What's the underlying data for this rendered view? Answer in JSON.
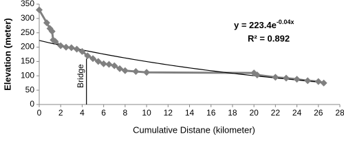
{
  "chart_data": {
    "type": "line",
    "xlabel": "Cumulative Distane (kilometer)",
    "ylabel": "Elevation (meter)",
    "x": [
      0,
      0.7,
      1,
      1.2,
      1.3,
      1.5,
      2,
      2.5,
      3,
      3.5,
      4,
      4.5,
      5,
      5.5,
      6,
      6.5,
      7,
      7.5,
      8,
      9,
      10,
      20,
      20.3,
      22,
      23,
      24,
      25,
      26,
      26.5
    ],
    "values": [
      330,
      285,
      265,
      255,
      225,
      220,
      205,
      200,
      198,
      193,
      185,
      170,
      160,
      150,
      142,
      140,
      135,
      125,
      118,
      115,
      112,
      110,
      103,
      95,
      92,
      88,
      83,
      80,
      75
    ],
    "color": "#808080",
    "marker": "diamond",
    "xlim": [
      0,
      28
    ],
    "xticks": [
      0,
      2,
      4,
      6,
      8,
      10,
      12,
      14,
      16,
      18,
      20,
      22,
      24,
      26,
      28
    ],
    "ylim": [
      0,
      350
    ],
    "yticks": [
      0,
      50,
      100,
      150,
      200,
      250,
      300,
      350
    ],
    "trendline": {
      "coefficient": 223.4,
      "exponent": -0.04,
      "color": "#000000"
    },
    "equation": {
      "base": "y = 223.4e",
      "power": "-0.04x"
    },
    "r_squared": "R² = 0.892",
    "annotation": {
      "text": "Bridge",
      "x": 4.4,
      "y": 160
    }
  }
}
